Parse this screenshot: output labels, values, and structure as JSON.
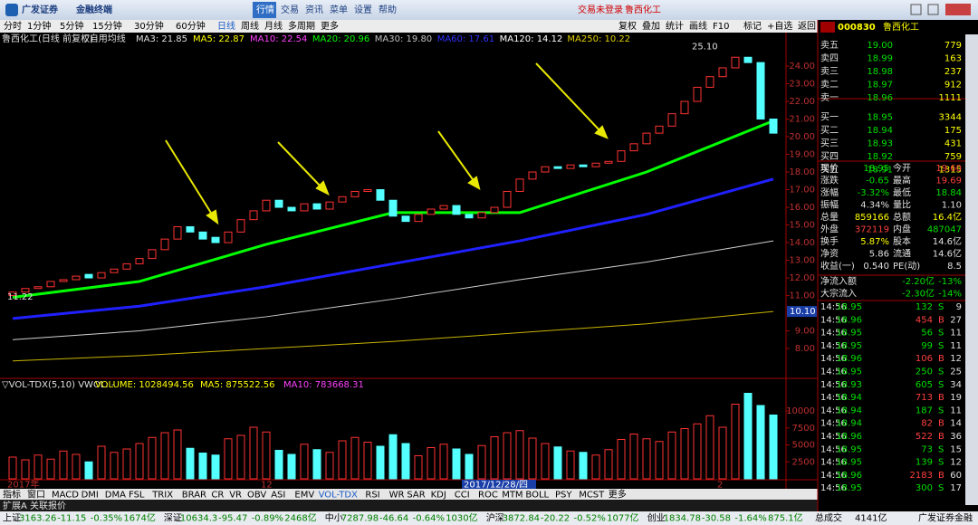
{
  "window": {
    "logo": "广发证券",
    "app": "金融终端",
    "menu": [
      "行情",
      "交易",
      "资讯",
      "菜单",
      "设置",
      "帮助"
    ],
    "login": "交易未登录",
    "stock": "鲁西化工"
  },
  "toolbar": {
    "periods": [
      "分时",
      "1分钟",
      "5分钟",
      "15分钟",
      "30分钟",
      "60分钟",
      "日线",
      "周线",
      "月线",
      "多周期",
      "更多"
    ],
    "tools": [
      "复权",
      "叠加",
      "统计",
      "画线",
      "F10",
      "标记",
      "+自选",
      "返回"
    ]
  },
  "chart_data": {
    "type": "candlestick",
    "title": "鲁西化工(日线 前复权)",
    "indicator": "▽自用均线",
    "ma_legend": [
      {
        "text": "MA3: 21.85",
        "color": "#e0e0e0"
      },
      {
        "text": "MA5: 22.87",
        "color": "#ffff00"
      },
      {
        "text": "MA10: 22.54",
        "color": "#ff40ff"
      },
      {
        "text": "MA20: 20.96",
        "color": "#00ff00"
      },
      {
        "text": "MA30: 19.80",
        "color": "#c0c0c0"
      },
      {
        "text": "MA60: 17.61",
        "color": "#3030ff"
      },
      {
        "text": "MA120: 14.12",
        "color": "#ffffff"
      },
      {
        "text": "MA250: 10.22",
        "color": "#e0d000"
      }
    ],
    "open": [
      11.0,
      11.2,
      11.4,
      11.5,
      11.8,
      11.9,
      12.2,
      12.0,
      12.3,
      12.5,
      12.8,
      13.1,
      13.6,
      14.2,
      14.9,
      14.6,
      14.3,
      14.0,
      14.6,
      15.3,
      15.8,
      16.4,
      16.0,
      15.8,
      16.2,
      15.9,
      16.3,
      16.6,
      16.9,
      17.0,
      16.4,
      15.5,
      15.2,
      15.6,
      15.9,
      16.1,
      15.6,
      15.4,
      15.7,
      16.0,
      16.9,
      17.6,
      18.0,
      18.3,
      18.2,
      18.4,
      18.3,
      18.5,
      18.6,
      19.2,
      19.6,
      20.2,
      20.6,
      21.3,
      22.0,
      22.8,
      23.4,
      23.9,
      24.5,
      24.2,
      21.0
    ],
    "close": [
      11.2,
      11.4,
      11.5,
      11.8,
      11.9,
      12.1,
      12.0,
      12.3,
      12.5,
      12.8,
      13.1,
      13.6,
      14.2,
      14.9,
      14.6,
      14.2,
      14.0,
      14.6,
      15.3,
      15.8,
      16.4,
      16.0,
      15.8,
      16.2,
      15.9,
      16.3,
      16.6,
      16.9,
      17.0,
      16.4,
      15.5,
      15.2,
      15.6,
      15.9,
      16.1,
      15.6,
      15.4,
      15.7,
      16.0,
      16.9,
      17.6,
      18.0,
      18.3,
      18.2,
      18.4,
      18.3,
      18.5,
      18.6,
      19.2,
      19.6,
      20.2,
      20.6,
      21.3,
      22.0,
      22.8,
      23.4,
      23.9,
      24.5,
      24.2,
      21.0,
      20.2
    ],
    "ylim": [
      6.31,
      25.18
    ],
    "yticks": [
      {
        "value": 24,
        "label": "24.00"
      },
      {
        "value": 23,
        "label": "23.00"
      },
      {
        "value": 22,
        "label": "22.00"
      },
      {
        "value": 21,
        "label": "21.00"
      },
      {
        "value": 20,
        "label": "20.00"
      },
      {
        "value": 19,
        "label": "19.00"
      },
      {
        "value": 18,
        "label": "18.00"
      },
      {
        "value": 17,
        "label": "17.00"
      },
      {
        "value": 16,
        "label": "16.00"
      },
      {
        "value": 15,
        "label": "15.00"
      },
      {
        "value": 14,
        "label": "14.00"
      },
      {
        "value": 13,
        "label": "13.00"
      },
      {
        "value": 12,
        "label": "12.00"
      },
      {
        "value": 11,
        "label": "11.00"
      },
      {
        "value": 9,
        "label": "9.00"
      },
      {
        "value": 8,
        "label": "8.00"
      }
    ],
    "highlight_tick": {
      "value": 10.1,
      "label": "10.10"
    },
    "annotations": [
      {
        "text": "25.10",
        "value": 25.1,
        "index": 56
      },
      {
        "text": "11.22",
        "value": 11.22,
        "index": 0
      }
    ],
    "date_labels": [
      {
        "text": "2017年",
        "index": 0
      },
      {
        "text": "12",
        "index": 20
      },
      {
        "text": "2017/12/28/四",
        "index": 36
      },
      {
        "text": "2",
        "index": 56
      }
    ],
    "moving_averages": {
      "x": [
        0,
        10,
        20,
        30,
        40,
        50,
        60
      ],
      "series": [
        {
          "color": "#00ff00",
          "values": [
            10.9,
            11.8,
            13.9,
            15.7,
            15.7,
            18.0,
            20.9
          ]
        },
        {
          "color": "#2020ff",
          "values": [
            9.7,
            10.4,
            11.5,
            12.8,
            14.1,
            15.6,
            17.6
          ]
        },
        {
          "color": "#d0d0d0",
          "values": [
            8.5,
            9.0,
            9.8,
            10.8,
            11.9,
            12.9,
            14.1
          ]
        },
        {
          "color": "#c8b400",
          "values": [
            7.3,
            7.6,
            8.0,
            8.4,
            8.9,
            9.4,
            10.1
          ]
        }
      ]
    },
    "volume": {
      "title": "▽VOL-TDX(5,10) VWOL: -",
      "legend": [
        {
          "text": "VOLUME: 1028494.56",
          "color": "#ffff00"
        },
        {
          "text": "MA5: 875522.56",
          "color": "#ffff00"
        },
        {
          "text": "MA10: 783668.31",
          "color": "#ff40ff"
        }
      ],
      "values": [
        3200,
        2800,
        3500,
        2900,
        4100,
        3600,
        2500,
        4800,
        3900,
        4400,
        5200,
        6100,
        6800,
        7200,
        4500,
        3800,
        3500,
        5900,
        6400,
        7600,
        6900,
        4200,
        3600,
        5100,
        4300,
        3900,
        5600,
        6100,
        5400,
        4800,
        6500,
        5200,
        3400,
        4600,
        5100,
        4400,
        3600,
        4900,
        6200,
        6800,
        7100,
        6000,
        5200,
        4700,
        4100,
        3900,
        3500,
        4300,
        5800,
        6600,
        5900,
        5500,
        6900,
        7400,
        8100,
        9300,
        7600,
        11000,
        12600,
        10800,
        9400
      ],
      "ylim": [
        0,
        13200
      ],
      "yticks": [
        2500,
        5000,
        7500,
        10000
      ]
    }
  },
  "tabs": [
    "指标",
    "窗口",
    "MACD",
    "DMI",
    "DMA",
    "FSL",
    "TRIX",
    "BRAR",
    "CR",
    "VR",
    "OBV",
    "ASI",
    "EMV",
    "VOL-TDX",
    "RSI",
    "WR",
    "SAR",
    "KDJ",
    "CCI",
    "ROC",
    "MTM",
    "BOLL",
    "PSY",
    "MCST",
    "更多"
  ],
  "extension": [
    "扩展A",
    "关联报价"
  ],
  "quote": {
    "code": "000830",
    "name": "鲁西化工",
    "book": [
      [
        "卖五",
        "19.00",
        "779"
      ],
      [
        "卖四",
        "18.99",
        "163"
      ],
      [
        "卖三",
        "18.98",
        "237"
      ],
      [
        "卖二",
        "18.97",
        "912"
      ],
      [
        "卖一",
        "18.96",
        "1111"
      ],
      [
        "买一",
        "18.95",
        "3344"
      ],
      [
        "买二",
        "18.94",
        "175"
      ],
      [
        "买三",
        "18.93",
        "431"
      ],
      [
        "买四",
        "18.92",
        "759"
      ],
      [
        "买五",
        "18.91",
        "1315"
      ]
    ],
    "fields": [
      {
        "cells": [
          "现价",
          "18.95",
          "今开",
          "19.60"
        ],
        "colors": [
          "#00e000",
          "#ff4040"
        ]
      },
      {
        "cells": [
          "涨跌",
          "-0.65",
          "最高",
          "19.69"
        ],
        "colors": [
          "#00e000",
          "#ff4040"
        ]
      },
      {
        "cells": [
          "涨幅",
          "-3.32%",
          "最低",
          "18.84"
        ],
        "colors": [
          "#00e000",
          "#00e000"
        ]
      },
      {
        "cells": [
          "振幅",
          "4.34%",
          "量比",
          "1.10"
        ],
        "colors": [
          "#e0e0e0",
          "#e0e0e0"
        ]
      },
      {
        "cells": [
          "总量",
          "859166",
          "总额",
          "16.4亿"
        ],
        "colors": [
          "#ffff00",
          "#ffff00"
        ]
      },
      {
        "cells": [
          "外盘",
          "372119",
          "内盘",
          "487047"
        ],
        "colors": [
          "#ff4040",
          "#00e000"
        ]
      },
      {
        "cells": [
          "换手",
          "5.87%",
          "股本",
          "14.6亿"
        ],
        "colors": [
          "#ffff00",
          "#e0e0e0"
        ]
      },
      {
        "cells": [
          "净资",
          "5.86",
          "流通",
          "14.6亿"
        ],
        "colors": [
          "#e0e0e0",
          "#e0e0e0"
        ]
      },
      {
        "cells": [
          "收益(一)",
          "0.540",
          "PE(动)",
          "8.5"
        ],
        "colors": [
          "#e0e0e0",
          "#e0e0e0"
        ]
      }
    ],
    "flows": [
      [
        "净流入额",
        "-2.20亿",
        "-13%"
      ],
      [
        "大宗流入",
        "-2.30亿",
        "-14%"
      ]
    ],
    "ticks": [
      [
        "14:56",
        "18.95",
        "132",
        "S",
        "9"
      ],
      [
        "14:56",
        "18.96",
        "454",
        "B",
        "27"
      ],
      [
        "14:56",
        "18.95",
        "56",
        "S",
        "11"
      ],
      [
        "14:56",
        "18.95",
        "99",
        "S",
        "11"
      ],
      [
        "14:56",
        "18.96",
        "106",
        "B",
        "12"
      ],
      [
        "14:56",
        "18.95",
        "250",
        "S",
        "25"
      ],
      [
        "14:56",
        "18.93",
        "605",
        "S",
        "34"
      ],
      [
        "14:56",
        "18.94",
        "713",
        "B",
        "19"
      ],
      [
        "14:56",
        "18.94",
        "187",
        "S",
        "11"
      ],
      [
        "14:56",
        "18.94",
        "82",
        "B",
        "14"
      ],
      [
        "14:56",
        "18.96",
        "522",
        "B",
        "36"
      ],
      [
        "14:56",
        "18.95",
        "73",
        "S",
        "15"
      ],
      [
        "14:56",
        "18.95",
        "139",
        "S",
        "12"
      ],
      [
        "14:56",
        "18.96",
        "2183",
        "B",
        "60"
      ],
      [
        "14:56",
        "18.95",
        "300",
        "S",
        "17"
      ]
    ]
  },
  "status": [
    [
      "上证",
      "3163.26",
      "-11.15",
      "-0.35%",
      "1674亿"
    ],
    [
      "深证",
      "10634.3",
      "-95.47",
      "-0.89%",
      "2468亿"
    ],
    [
      "中小",
      "7287.98",
      "-46.64",
      "-0.64%",
      "1030亿"
    ],
    [
      "沪深",
      "3872.84",
      "-20.22",
      "-0.52%",
      "1077亿"
    ],
    [
      "创业",
      "1834.78",
      "-30.58",
      "-1.64%",
      "875.1亿"
    ]
  ],
  "status_total": [
    "总成交",
    "4141亿"
  ],
  "status_broker": "广发证券金融"
}
